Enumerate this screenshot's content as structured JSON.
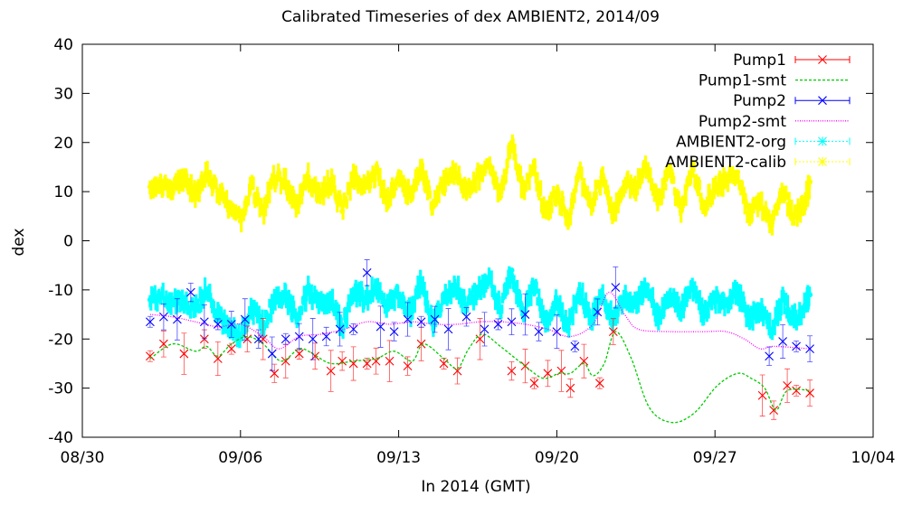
{
  "chart_data": {
    "type": "line",
    "title": "Calibrated Timeseries of dex AMBIENT2, 2014/09",
    "xlabel": "In 2014 (GMT)",
    "ylabel": "dex",
    "xlim": [
      "2014-08-30",
      "2014-10-04"
    ],
    "ylim": [
      -40,
      40
    ],
    "x_ticks": [
      "08/30",
      "09/06",
      "09/13",
      "09/20",
      "09/27",
      "10/04"
    ],
    "y_ticks": [
      -40,
      -30,
      -20,
      -10,
      0,
      10,
      20,
      30,
      40
    ],
    "grid": false,
    "legend_position": "top-right",
    "series": [
      {
        "name": "Pump1",
        "color": "#ff0000",
        "marker": "x",
        "error_bars": true,
        "x": [
          "2014-09-02",
          "2014-09-02.6",
          "2014-09-03.5",
          "2014-09-04.4",
          "2014-09-05",
          "2014-09-05.6",
          "2014-09-06.3",
          "2014-09-07",
          "2014-09-07.5",
          "2014-09-08",
          "2014-09-08.6",
          "2014-09-09.3",
          "2014-09-10",
          "2014-09-10.5",
          "2014-09-11",
          "2014-09-11.6",
          "2014-09-12",
          "2014-09-12.6",
          "2014-09-13.4",
          "2014-09-14",
          "2014-09-15",
          "2014-09-15.6",
          "2014-09-16.6",
          "2014-09-18",
          "2014-09-18.6",
          "2014-09-19",
          "2014-09-19.6",
          "2014-09-20.2",
          "2014-09-20.6",
          "2014-09-21.2",
          "2014-09-21.9",
          "2014-09-22.5",
          "2014-09-29.1",
          "2014-09-29.6",
          "2014-09-30.2",
          "2014-09-30.6",
          "2014-10-01.2"
        ],
        "values": [
          -23.5,
          -21,
          -23,
          -20,
          -24,
          -22,
          -20,
          -20,
          -27,
          -24.5,
          -23,
          -23.5,
          -26.5,
          -24.5,
          -25,
          -25,
          -24.5,
          -24.5,
          -25.5,
          -21,
          -25,
          -26.5,
          -20,
          -26.5,
          -25.5,
          -29,
          -27,
          -26.5,
          -30,
          -24.5,
          -29,
          -18.5,
          -31.5,
          -34.5,
          -29.5,
          -30.5,
          -31
        ]
      },
      {
        "name": "Pump1-smt",
        "color": "#00cc00",
        "style": "dashed",
        "x": [
          "2014-09-02",
          "2014-09-03",
          "2014-09-04",
          "2014-09-04.5",
          "2014-09-05",
          "2014-09-05.6",
          "2014-09-06.3",
          "2014-09-07",
          "2014-09-07.8",
          "2014-09-08.6",
          "2014-09-09.2",
          "2014-09-10",
          "2014-09-11",
          "2014-09-12",
          "2014-09-12.8",
          "2014-09-13.6",
          "2014-09-14.1",
          "2014-09-15",
          "2014-09-15.6",
          "2014-09-16.1",
          "2014-09-16.7",
          "2014-09-17.5",
          "2014-09-18.6",
          "2014-09-19.4",
          "2014-09-20.1",
          "2014-09-20.6",
          "2014-09-21.2",
          "2014-09-21.6",
          "2014-09-22.1",
          "2014-09-22.6",
          "2014-09-23.3",
          "2014-09-24.1",
          "2014-09-25.1",
          "2014-09-26.1",
          "2014-09-27.1",
          "2014-09-28",
          "2014-09-28.6",
          "2014-09-29.2",
          "2014-09-29.7",
          "2014-09-30.2",
          "2014-10-01.2"
        ],
        "values": [
          -24,
          -21,
          -22.5,
          -21.5,
          -23.5,
          -21,
          -19.5,
          -21,
          -24.5,
          -22,
          -23,
          -25,
          -24.5,
          -24,
          -22.5,
          -24.5,
          -21,
          -24,
          -26,
          -22,
          -19,
          -21.5,
          -25.5,
          -28,
          -27,
          -27,
          -25,
          -27.5,
          -25,
          -18.5,
          -24,
          -34,
          -37,
          -35,
          -29.5,
          -27,
          -28,
          -30,
          -34.5,
          -30.5,
          -30.5
        ]
      },
      {
        "name": "Pump2",
        "color": "#0000ff",
        "marker": "x",
        "error_bars": true,
        "x": [
          "2014-09-02",
          "2014-09-02.6",
          "2014-09-03.2",
          "2014-09-03.8",
          "2014-09-04.4",
          "2014-09-05",
          "2014-09-05.6",
          "2014-09-06.2",
          "2014-09-06.8",
          "2014-09-07.4",
          "2014-09-08",
          "2014-09-08.6",
          "2014-09-09.2",
          "2014-09-09.8",
          "2014-09-10.4",
          "2014-09-11",
          "2014-09-11.6",
          "2014-09-12.2",
          "2014-09-12.8",
          "2014-09-13.4",
          "2014-09-14",
          "2014-09-14.6",
          "2014-09-15.2",
          "2014-09-16",
          "2014-09-16.8",
          "2014-09-17.4",
          "2014-09-18",
          "2014-09-18.6",
          "2014-09-19.2",
          "2014-09-20",
          "2014-09-20.8",
          "2014-09-21.8",
          "2014-09-22.6",
          "2014-09-29.4",
          "2014-09-30",
          "2014-09-30.6",
          "2014-10-01.2"
        ],
        "values": [
          -16.5,
          -15.5,
          -16,
          -10.5,
          -16.5,
          -17,
          -17,
          -16,
          -20,
          -23,
          -20,
          -19.5,
          -20,
          -19.5,
          -18,
          -18,
          -6.5,
          -17.5,
          -18.5,
          -16,
          -16.5,
          -16,
          -18,
          -15.5,
          -18,
          -17,
          -16.5,
          -15,
          -18.5,
          -18.5,
          -21.5,
          -14.5,
          -9.5,
          -23.5,
          -20.5,
          -21.5,
          -22
        ]
      },
      {
        "name": "Pump2-smt",
        "color": "#ff00ff",
        "style": "dotted",
        "x": [
          "2014-09-02",
          "2014-09-03",
          "2014-09-04",
          "2014-09-05",
          "2014-09-06",
          "2014-09-07",
          "2014-09-07.7",
          "2014-09-08.6",
          "2014-09-09.6",
          "2014-09-10.6",
          "2014-09-11.6",
          "2014-09-12.6",
          "2014-09-13.6",
          "2014-09-14.6",
          "2014-09-15.6",
          "2014-09-16.6",
          "2014-09-17.6",
          "2014-09-18.6",
          "2014-09-19.6",
          "2014-09-20.6",
          "2014-09-21.6",
          "2014-09-22.3",
          "2014-09-23",
          "2014-09-23.6",
          "2014-09-25",
          "2014-09-26.5",
          "2014-09-27.5",
          "2014-09-28.3",
          "2014-09-29",
          "2014-09-29.6",
          "2014-10-01.2"
        ],
        "values": [
          -15,
          -15.5,
          -16.5,
          -17.5,
          -17,
          -19.5,
          -22,
          -19.5,
          -19,
          -18,
          -16.5,
          -17,
          -16.5,
          -17,
          -17,
          -16.5,
          -16.5,
          -17,
          -18,
          -19.5,
          -17,
          -10.5,
          -15,
          -18,
          -18.5,
          -18.5,
          -18.5,
          -20,
          -22,
          -21.5,
          -22
        ]
      },
      {
        "name": "AMBIENT2-org",
        "color": "#00ffff",
        "marker": "star",
        "error_bars": true,
        "x": [
          "2014-09-02",
          "2014-09-02.5",
          "2014-09-03",
          "2014-09-03.5",
          "2014-09-04",
          "2014-09-04.5",
          "2014-09-05",
          "2014-09-05.5",
          "2014-09-06",
          "2014-09-06.5",
          "2014-09-07",
          "2014-09-07.5",
          "2014-09-08",
          "2014-09-08.5",
          "2014-09-09",
          "2014-09-09.5",
          "2014-09-10",
          "2014-09-10.5",
          "2014-09-11",
          "2014-09-11.5",
          "2014-09-12",
          "2014-09-12.5",
          "2014-09-13",
          "2014-09-13.5",
          "2014-09-14",
          "2014-09-14.5",
          "2014-09-15",
          "2014-09-15.5",
          "2014-09-16",
          "2014-09-16.5",
          "2014-09-17",
          "2014-09-17.5",
          "2014-09-18",
          "2014-09-18.5",
          "2014-09-19",
          "2014-09-19.5",
          "2014-09-20",
          "2014-09-20.5",
          "2014-09-21",
          "2014-09-21.5",
          "2014-09-22",
          "2014-09-22.5",
          "2014-09-23",
          "2014-09-23.5",
          "2014-09-24",
          "2014-09-24.5",
          "2014-09-25",
          "2014-09-25.5",
          "2014-09-26",
          "2014-09-26.5",
          "2014-09-27",
          "2014-09-27.5",
          "2014-09-28",
          "2014-09-28.5",
          "2014-09-29",
          "2014-09-29.5",
          "2014-09-30",
          "2014-09-30.5",
          "2014-10-01",
          "2014-10-01.2"
        ],
        "values": [
          -12,
          -11,
          -13,
          -12,
          -14,
          -10,
          -15,
          -18,
          -19,
          -14,
          -17,
          -12,
          -11,
          -16,
          -10,
          -13,
          -12,
          -18,
          -10,
          -12,
          -9,
          -14,
          -11,
          -15,
          -8,
          -17,
          -12,
          -9,
          -13,
          -10,
          -8,
          -14,
          -6,
          -15,
          -9,
          -17,
          -12,
          -18,
          -10,
          -16,
          -11,
          -16,
          -12,
          -13,
          -9,
          -16,
          -11,
          -14,
          -9,
          -15,
          -12,
          -13,
          -10,
          -16,
          -14,
          -18,
          -12,
          -16,
          -13,
          -11
        ]
      },
      {
        "name": "AMBIENT2-calib",
        "color": "#ffff00",
        "marker": "star",
        "error_bars": true,
        "x": [
          "2014-09-02",
          "2014-09-02.5",
          "2014-09-03",
          "2014-09-03.5",
          "2014-09-04",
          "2014-09-04.5",
          "2014-09-05",
          "2014-09-05.5",
          "2014-09-06",
          "2014-09-06.5",
          "2014-09-07",
          "2014-09-07.5",
          "2014-09-08",
          "2014-09-08.5",
          "2014-09-09",
          "2014-09-09.5",
          "2014-09-10",
          "2014-09-10.5",
          "2014-09-11",
          "2014-09-11.5",
          "2014-09-12",
          "2014-09-12.5",
          "2014-09-13",
          "2014-09-13.5",
          "2014-09-14",
          "2014-09-14.5",
          "2014-09-15",
          "2014-09-15.5",
          "2014-09-16",
          "2014-09-16.5",
          "2014-09-17",
          "2014-09-17.5",
          "2014-09-18",
          "2014-09-18.5",
          "2014-09-19",
          "2014-09-19.5",
          "2014-09-20",
          "2014-09-20.5",
          "2014-09-21",
          "2014-09-21.5",
          "2014-09-22",
          "2014-09-22.5",
          "2014-09-23",
          "2014-09-23.5",
          "2014-09-24",
          "2014-09-24.5",
          "2014-09-25",
          "2014-09-25.5",
          "2014-09-26",
          "2014-09-26.5",
          "2014-09-27",
          "2014-09-27.5",
          "2014-09-28",
          "2014-09-28.5",
          "2014-09-29",
          "2014-09-29.5",
          "2014-09-30",
          "2014-09-30.5",
          "2014-10-01",
          "2014-10-01.2"
        ],
        "values": [
          11,
          12,
          10,
          13,
          9,
          14,
          10,
          7,
          4,
          11,
          6,
          13,
          12,
          7,
          13,
          9,
          12,
          6,
          13,
          11,
          14,
          8,
          13,
          9,
          15,
          7,
          12,
          14,
          10,
          13,
          15,
          9,
          20,
          10,
          15,
          5,
          10,
          4,
          14,
          7,
          13,
          5,
          12,
          11,
          15,
          8,
          14,
          6,
          15,
          7,
          11,
          12,
          14,
          5,
          8,
          3,
          10,
          5,
          8,
          12
        ]
      }
    ]
  }
}
